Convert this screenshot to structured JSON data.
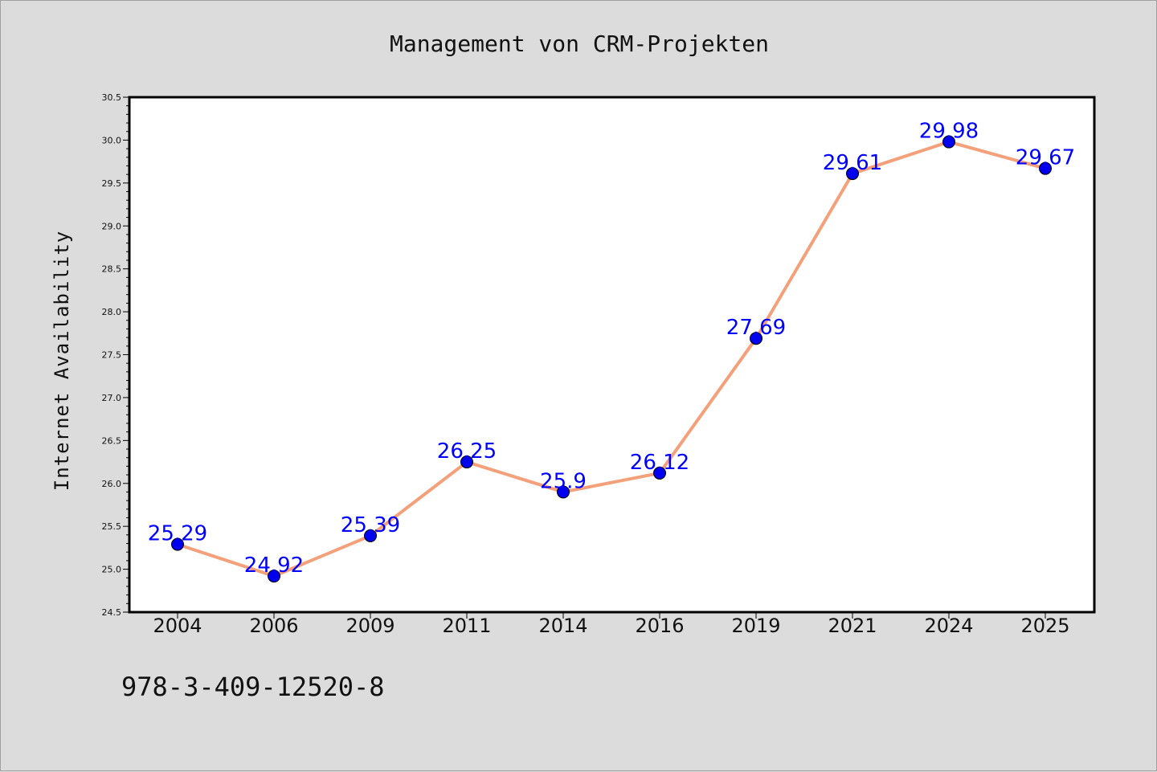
{
  "chart_data": {
    "type": "line",
    "title": "Management von CRM-Projekten",
    "xlabel": "",
    "ylabel": "Internet Availability",
    "categories": [
      "2004",
      "2006",
      "2009",
      "2011",
      "2014",
      "2016",
      "2019",
      "2021",
      "2024",
      "2025"
    ],
    "series": [
      {
        "values": [
          25.29,
          24.92,
          25.39,
          26.25,
          25.9,
          26.12,
          27.69,
          29.61,
          29.98,
          29.67
        ],
        "data_labels": [
          "25.29",
          "24.92",
          "25.39",
          "26.25",
          "25.9",
          "26.12",
          "27.69",
          "29.61",
          "29.98",
          "29.67"
        ],
        "line_color": "#f4a07a",
        "marker_color": "#0000ee",
        "label_color": "#0000ff"
      }
    ],
    "ylim": [
      24.5,
      30.5
    ],
    "yticks": [
      "24.5",
      "25.0",
      "25.5",
      "26.0",
      "26.5",
      "27.0",
      "27.5",
      "28.0",
      "28.5",
      "29.0",
      "29.5",
      "30.0",
      "30.5"
    ],
    "grid": false,
    "legend": "none"
  },
  "footer": {
    "isbn": "978-3-409-12520-8"
  },
  "colors": {
    "background": "#dcdcdc",
    "plot_background": "#ffffff",
    "axis": "#000000"
  }
}
